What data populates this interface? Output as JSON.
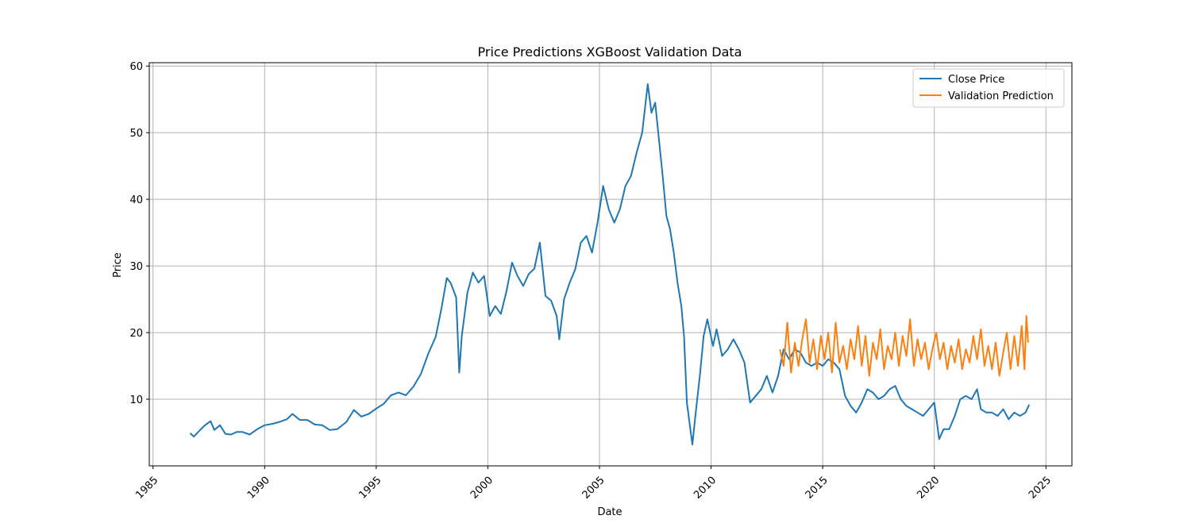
{
  "chart_data": {
    "type": "line",
    "title": "Price Predictions XGBoost Validation Data",
    "xlabel": "Date",
    "ylabel": "Price",
    "x_axis_kind": "date",
    "xlim": [
      "1984-11-01",
      "2026-03-01"
    ],
    "ylim": [
      0,
      60.5
    ],
    "x_ticks": [
      "1985",
      "1990",
      "1995",
      "2000",
      "2005",
      "2010",
      "2015",
      "2020",
      "2025"
    ],
    "y_ticks": [
      10,
      20,
      30,
      40,
      50,
      60
    ],
    "grid": true,
    "legend_position": "top-right",
    "series": [
      {
        "name": "Close Price",
        "color": "#1f77b4",
        "points": [
          [
            "1986-09-01",
            4.9
          ],
          [
            "1986-11-01",
            4.4
          ],
          [
            "1987-02-01",
            5.3
          ],
          [
            "1987-05-01",
            6.1
          ],
          [
            "1987-08-01",
            6.7
          ],
          [
            "1987-10-01",
            5.4
          ],
          [
            "1988-01-01",
            6.1
          ],
          [
            "1988-04-01",
            4.8
          ],
          [
            "1988-07-01",
            4.7
          ],
          [
            "1988-10-01",
            5.1
          ],
          [
            "1989-01-01",
            5.1
          ],
          [
            "1989-05-01",
            4.7
          ],
          [
            "1989-09-01",
            5.5
          ],
          [
            "1990-01-01",
            6.1
          ],
          [
            "1990-05-01",
            6.3
          ],
          [
            "1990-09-01",
            6.6
          ],
          [
            "1991-01-01",
            7.0
          ],
          [
            "1991-04-01",
            7.8
          ],
          [
            "1991-08-01",
            6.9
          ],
          [
            "1991-12-01",
            6.9
          ],
          [
            "1992-04-01",
            6.2
          ],
          [
            "1992-08-01",
            6.1
          ],
          [
            "1992-12-01",
            5.4
          ],
          [
            "1993-04-01",
            5.5
          ],
          [
            "1993-09-01",
            6.6
          ],
          [
            "1994-01-01",
            8.4
          ],
          [
            "1994-05-01",
            7.4
          ],
          [
            "1994-09-01",
            7.8
          ],
          [
            "1995-01-01",
            8.6
          ],
          [
            "1995-05-01",
            9.3
          ],
          [
            "1995-09-01",
            10.6
          ],
          [
            "1996-01-01",
            11.0
          ],
          [
            "1996-05-01",
            10.6
          ],
          [
            "1996-09-01",
            11.9
          ],
          [
            "1997-01-01",
            13.8
          ],
          [
            "1997-05-01",
            16.8
          ],
          [
            "1997-09-01",
            19.4
          ],
          [
            "1997-12-01",
            23.5
          ],
          [
            "1998-03-01",
            28.2
          ],
          [
            "1998-05-01",
            27.5
          ],
          [
            "1998-08-01",
            25.3
          ],
          [
            "1998-09-20",
            14.0
          ],
          [
            "1998-11-01",
            19.5
          ],
          [
            "1999-02-01",
            26.0
          ],
          [
            "1999-05-01",
            29.0
          ],
          [
            "1999-08-01",
            27.5
          ],
          [
            "1999-11-01",
            28.5
          ],
          [
            "2000-02-01",
            22.5
          ],
          [
            "2000-05-01",
            24.0
          ],
          [
            "2000-08-01",
            22.8
          ],
          [
            "2000-11-01",
            26.2
          ],
          [
            "2001-02-01",
            30.5
          ],
          [
            "2001-05-01",
            28.5
          ],
          [
            "2001-08-01",
            27.0
          ],
          [
            "2001-11-01",
            28.8
          ],
          [
            "2002-02-01",
            29.6
          ],
          [
            "2002-05-01",
            33.5
          ],
          [
            "2002-08-01",
            25.5
          ],
          [
            "2002-11-01",
            24.8
          ],
          [
            "2003-02-01",
            22.5
          ],
          [
            "2003-03-15",
            19.0
          ],
          [
            "2003-06-01",
            25.0
          ],
          [
            "2003-09-01",
            27.5
          ],
          [
            "2003-12-01",
            29.5
          ],
          [
            "2004-03-01",
            33.5
          ],
          [
            "2004-06-01",
            34.5
          ],
          [
            "2004-09-01",
            32.0
          ],
          [
            "2004-12-01",
            36.5
          ],
          [
            "2005-03-01",
            42.0
          ],
          [
            "2005-06-01",
            38.5
          ],
          [
            "2005-09-01",
            36.5
          ],
          [
            "2005-12-01",
            38.5
          ],
          [
            "2006-03-01",
            42.0
          ],
          [
            "2006-06-01",
            43.5
          ],
          [
            "2006-09-01",
            47.0
          ],
          [
            "2006-12-01",
            50.0
          ],
          [
            "2007-03-01",
            57.3
          ],
          [
            "2007-05-01",
            53.0
          ],
          [
            "2007-07-01",
            54.5
          ],
          [
            "2007-09-01",
            49.0
          ],
          [
            "2007-11-01",
            43.5
          ],
          [
            "2008-01-01",
            37.5
          ],
          [
            "2008-03-01",
            35.5
          ],
          [
            "2008-05-01",
            32.0
          ],
          [
            "2008-07-01",
            27.5
          ],
          [
            "2008-09-01",
            24.0
          ],
          [
            "2008-10-15",
            19.5
          ],
          [
            "2008-12-01",
            9.5
          ],
          [
            "2009-03-01",
            3.2
          ],
          [
            "2009-05-01",
            8.5
          ],
          [
            "2009-07-01",
            13.5
          ],
          [
            "2009-09-01",
            19.5
          ],
          [
            "2009-11-01",
            22.0
          ],
          [
            "2010-02-01",
            18.0
          ],
          [
            "2010-04-01",
            20.5
          ],
          [
            "2010-07-01",
            16.5
          ],
          [
            "2010-10-01",
            17.5
          ],
          [
            "2011-01-01",
            19.0
          ],
          [
            "2011-04-01",
            17.5
          ],
          [
            "2011-07-01",
            15.5
          ],
          [
            "2011-10-01",
            9.5
          ],
          [
            "2012-01-01",
            10.5
          ],
          [
            "2012-04-01",
            11.5
          ],
          [
            "2012-07-01",
            13.5
          ],
          [
            "2012-10-01",
            11.0
          ],
          [
            "2013-01-01",
            13.5
          ],
          [
            "2013-04-01",
            17.5
          ],
          [
            "2013-07-01",
            16.0
          ],
          [
            "2013-10-01",
            17.5
          ],
          [
            "2014-01-01",
            17.0
          ],
          [
            "2014-04-01",
            15.5
          ],
          [
            "2014-07-01",
            15.0
          ],
          [
            "2014-10-01",
            15.5
          ],
          [
            "2015-01-01",
            15.0
          ],
          [
            "2015-04-01",
            16.0
          ],
          [
            "2015-07-01",
            15.5
          ],
          [
            "2015-10-01",
            14.5
          ],
          [
            "2016-01-01",
            10.5
          ],
          [
            "2016-04-01",
            9.0
          ],
          [
            "2016-07-01",
            8.0
          ],
          [
            "2016-10-01",
            9.5
          ],
          [
            "2017-01-01",
            11.5
          ],
          [
            "2017-04-01",
            11.0
          ],
          [
            "2017-07-01",
            10.0
          ],
          [
            "2017-10-01",
            10.5
          ],
          [
            "2018-01-01",
            11.5
          ],
          [
            "2018-04-01",
            12.0
          ],
          [
            "2018-07-01",
            10.0
          ],
          [
            "2018-10-01",
            9.0
          ],
          [
            "2019-01-01",
            8.5
          ],
          [
            "2019-04-01",
            8.0
          ],
          [
            "2019-07-01",
            7.5
          ],
          [
            "2019-10-01",
            8.5
          ],
          [
            "2020-01-01",
            9.5
          ],
          [
            "2020-03-20",
            4.0
          ],
          [
            "2020-06-01",
            5.5
          ],
          [
            "2020-09-01",
            5.5
          ],
          [
            "2020-12-01",
            7.5
          ],
          [
            "2021-03-01",
            10.0
          ],
          [
            "2021-06-01",
            10.5
          ],
          [
            "2021-09-01",
            10.0
          ],
          [
            "2021-12-01",
            11.5
          ],
          [
            "2022-02-01",
            8.5
          ],
          [
            "2022-05-01",
            8.0
          ],
          [
            "2022-08-01",
            8.0
          ],
          [
            "2022-11-01",
            7.5
          ],
          [
            "2023-02-01",
            8.5
          ],
          [
            "2023-05-01",
            7.0
          ],
          [
            "2023-08-01",
            8.0
          ],
          [
            "2023-11-01",
            7.5
          ],
          [
            "2024-02-01",
            8.0
          ],
          [
            "2024-04-01",
            9.2
          ]
        ]
      },
      {
        "name": "Validation Prediction",
        "color": "#ff7f0e",
        "points": [
          [
            "2013-02-01",
            17.5
          ],
          [
            "2013-04-01",
            15.0
          ],
          [
            "2013-06-01",
            21.5
          ],
          [
            "2013-08-01",
            14.0
          ],
          [
            "2013-10-01",
            18.5
          ],
          [
            "2013-12-01",
            15.0
          ],
          [
            "2014-02-01",
            19.0
          ],
          [
            "2014-04-01",
            22.0
          ],
          [
            "2014-06-01",
            15.5
          ],
          [
            "2014-08-01",
            19.0
          ],
          [
            "2014-10-01",
            14.5
          ],
          [
            "2014-12-01",
            19.5
          ],
          [
            "2015-02-01",
            16.0
          ],
          [
            "2015-04-01",
            20.0
          ],
          [
            "2015-06-01",
            14.0
          ],
          [
            "2015-08-01",
            21.5
          ],
          [
            "2015-10-01",
            15.5
          ],
          [
            "2015-12-01",
            18.0
          ],
          [
            "2016-02-01",
            14.5
          ],
          [
            "2016-04-01",
            19.0
          ],
          [
            "2016-06-01",
            16.0
          ],
          [
            "2016-08-01",
            21.0
          ],
          [
            "2016-10-01",
            15.0
          ],
          [
            "2016-12-01",
            19.5
          ],
          [
            "2017-02-01",
            13.5
          ],
          [
            "2017-04-01",
            18.5
          ],
          [
            "2017-06-01",
            16.0
          ],
          [
            "2017-08-01",
            20.5
          ],
          [
            "2017-10-01",
            14.5
          ],
          [
            "2017-12-01",
            18.0
          ],
          [
            "2018-02-01",
            16.0
          ],
          [
            "2018-04-01",
            20.0
          ],
          [
            "2018-06-01",
            15.0
          ],
          [
            "2018-08-01",
            19.5
          ],
          [
            "2018-10-01",
            16.5
          ],
          [
            "2018-12-01",
            22.0
          ],
          [
            "2019-02-01",
            15.0
          ],
          [
            "2019-04-01",
            19.0
          ],
          [
            "2019-06-01",
            16.0
          ],
          [
            "2019-08-01",
            18.5
          ],
          [
            "2019-10-01",
            14.5
          ],
          [
            "2019-12-01",
            17.5
          ],
          [
            "2020-02-01",
            20.0
          ],
          [
            "2020-04-01",
            16.0
          ],
          [
            "2020-06-01",
            18.5
          ],
          [
            "2020-08-01",
            14.5
          ],
          [
            "2020-10-01",
            18.0
          ],
          [
            "2020-12-01",
            15.5
          ],
          [
            "2021-02-01",
            19.0
          ],
          [
            "2021-04-01",
            14.5
          ],
          [
            "2021-06-01",
            17.5
          ],
          [
            "2021-08-01",
            15.5
          ],
          [
            "2021-10-01",
            19.5
          ],
          [
            "2021-12-01",
            16.0
          ],
          [
            "2022-02-01",
            20.5
          ],
          [
            "2022-04-01",
            15.0
          ],
          [
            "2022-06-01",
            18.0
          ],
          [
            "2022-08-01",
            14.5
          ],
          [
            "2022-10-01",
            18.5
          ],
          [
            "2022-12-01",
            13.5
          ],
          [
            "2023-02-01",
            17.0
          ],
          [
            "2023-04-01",
            20.0
          ],
          [
            "2023-06-01",
            14.5
          ],
          [
            "2023-08-01",
            19.5
          ],
          [
            "2023-10-01",
            15.0
          ],
          [
            "2023-12-01",
            21.0
          ],
          [
            "2024-01-15",
            14.5
          ],
          [
            "2024-02-15",
            22.5
          ],
          [
            "2024-03-15",
            18.5
          ]
        ]
      }
    ]
  }
}
